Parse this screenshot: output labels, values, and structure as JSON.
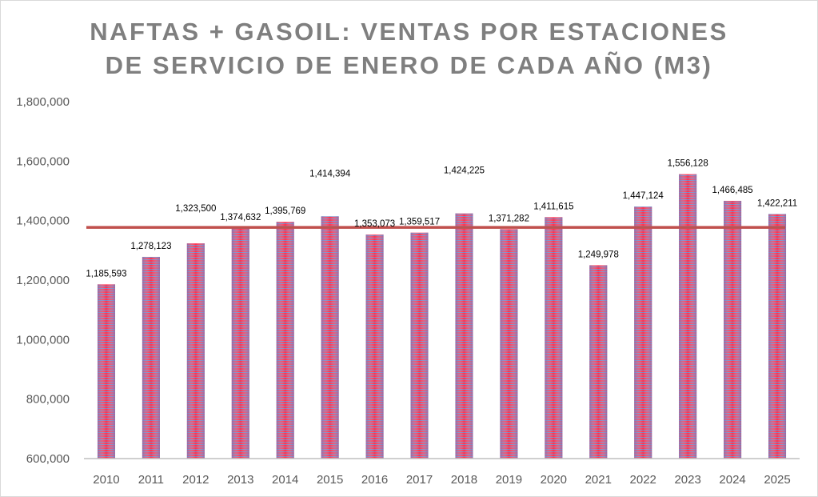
{
  "chart_data": {
    "type": "bar",
    "title": "NAFTAS + GASOIL: VENTAS POR ESTACIONES DE SERVICIO DE ENERO DE CADA AÑO (M3)",
    "title_lines": [
      "NAFTAS + GASOIL: VENTAS POR ESTACIONES",
      "DE SERVICIO DE ENERO DE CADA AÑO (M3)"
    ],
    "categories": [
      "2010",
      "2011",
      "2012",
      "2013",
      "2014",
      "2015",
      "2016",
      "2017",
      "2018",
      "2019",
      "2020",
      "2021",
      "2022",
      "2023",
      "2024",
      "2025"
    ],
    "values": [
      1185593,
      1278123,
      1323500,
      1374632,
      1395769,
      1414394,
      1353073,
      1359517,
      1424225,
      1371282,
      1411615,
      1249978,
      1447124,
      1556128,
      1466485,
      1422211
    ],
    "data_labels": [
      "1,185,593",
      "1,278,123",
      "1,323,500",
      "1,374,632",
      "1,395,769",
      "1,414,394",
      "1,353,073",
      "1,359,517",
      "1,424,225",
      "1,371,282",
      "1,411,615",
      "1,249,978",
      "1,447,124",
      "1,556,128",
      "1,466,485",
      "1,422,211"
    ],
    "reference_line": {
      "type": "average",
      "value": 1377103,
      "color": "#c0504d"
    },
    "ylim": [
      600000,
      1800000
    ],
    "yticks": [
      "600,000",
      "800,000",
      "1,000,000",
      "1,200,000",
      "1,400,000",
      "1,600,000",
      "1,800,000"
    ],
    "ytick_values": [
      600000,
      800000,
      1000000,
      1200000,
      1400000,
      1600000,
      1800000
    ],
    "grid": false,
    "legend": "none",
    "bar_colors": {
      "stripe_a": "#6b74b8",
      "stripe_b": "#ff1a3a"
    },
    "xlabel": "",
    "ylabel": ""
  }
}
